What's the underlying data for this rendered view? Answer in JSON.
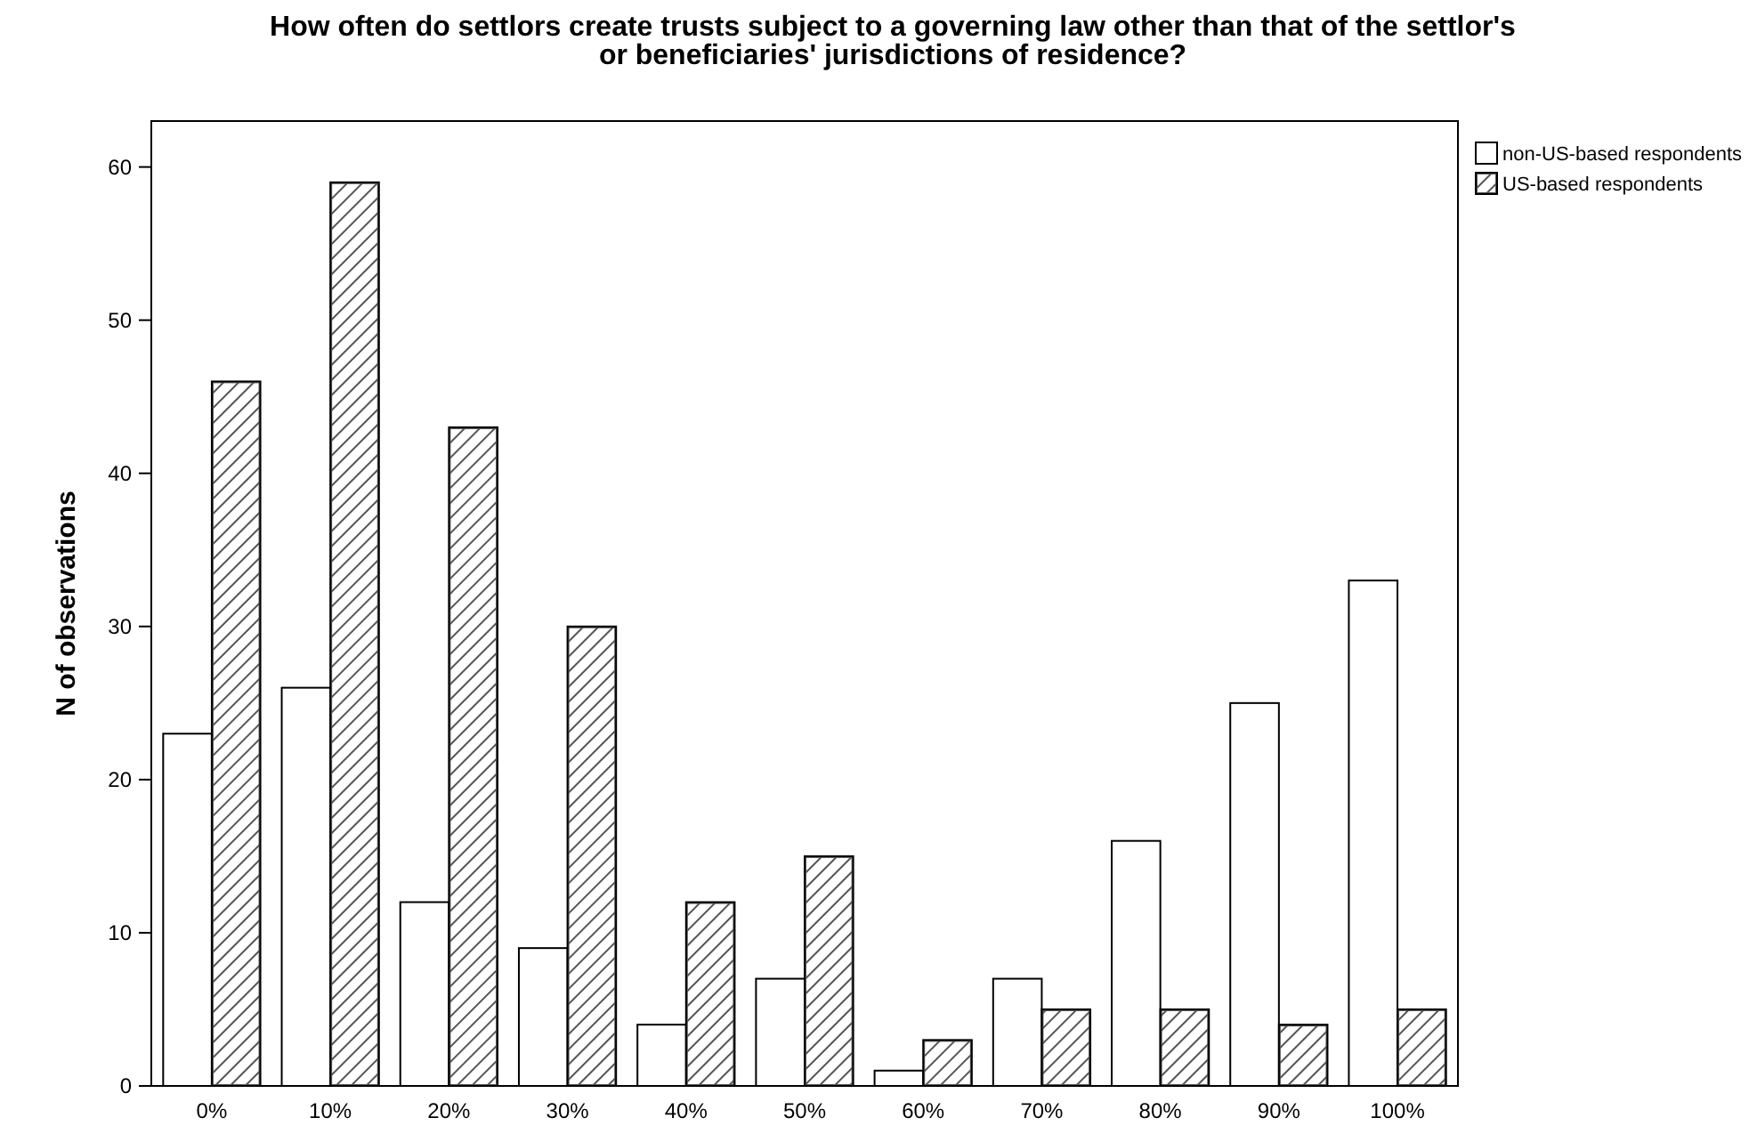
{
  "chart_data": {
    "type": "bar",
    "title": "How often do settlors create trusts subject to a governing law other than that of the settlor's\nor beneficiaries' jurisdictions of residence?",
    "ylabel": "N of observations",
    "categories": [
      "0%",
      "10%",
      "20%",
      "30%",
      "40%",
      "50%",
      "60%",
      "70%",
      "80%",
      "90%",
      "100%"
    ],
    "series": [
      {
        "name": "non-US-based respondents",
        "color": "#ffffff",
        "values": [
          23,
          26,
          12,
          9,
          4,
          7,
          1,
          7,
          16,
          25,
          33
        ]
      },
      {
        "name": "US-based respondents",
        "color": "#555555",
        "values": [
          46,
          59,
          43,
          30,
          12,
          15,
          3,
          5,
          5,
          4,
          5
        ]
      }
    ],
    "ylim": [
      0,
      63
    ],
    "yticks": [
      0,
      10,
      20,
      30,
      40,
      50,
      60
    ],
    "grid": false,
    "legend": "top right"
  }
}
